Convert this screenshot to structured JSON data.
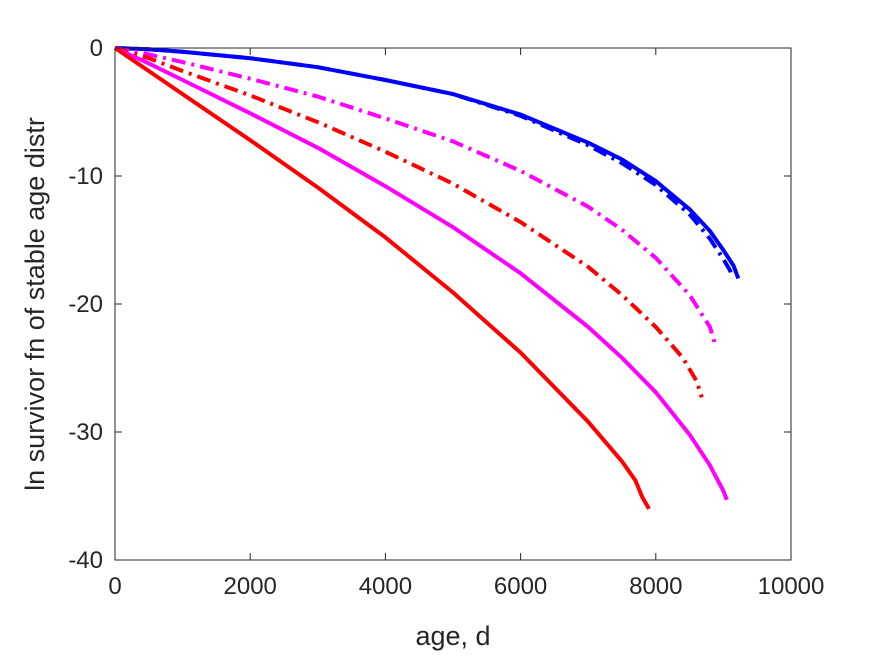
{
  "chart_data": {
    "type": "line",
    "title": "",
    "xlabel": "age, d",
    "ylabel": "ln survivor fn of stable age distr",
    "xlim": [
      0,
      10000
    ],
    "ylim": [
      -40,
      0
    ],
    "xticks": [
      0,
      2000,
      4000,
      6000,
      8000,
      10000
    ],
    "xtick_labels": [
      "0",
      "2000",
      "4000",
      "6000",
      "8000",
      "10000"
    ],
    "yticks": [
      0,
      -10,
      -20,
      -30,
      -40
    ],
    "ytick_labels": [
      "0",
      "-10",
      "-20",
      "-30",
      "-40"
    ],
    "grid": false,
    "legend": "none",
    "series": [
      {
        "color": "#0000ff",
        "style": "solid",
        "x": [
          0,
          500,
          1000,
          2000,
          3000,
          4000,
          5000,
          6000,
          7000,
          7500,
          8000,
          8500,
          8800,
          9000,
          9150,
          9220
        ],
        "y": [
          0,
          -0.1,
          -0.3,
          -0.8,
          -1.5,
          -2.5,
          -3.6,
          -5.2,
          -7.4,
          -8.7,
          -10.4,
          -12.6,
          -14.3,
          -15.8,
          -17.0,
          -18.0
        ]
      },
      {
        "color": "#0000ff",
        "style": "dashdot",
        "x": [
          0,
          500,
          1000,
          2000,
          3000,
          4000,
          5000,
          6000,
          7000,
          7500,
          8000,
          8500,
          8800,
          9000,
          9100,
          9120
        ],
        "y": [
          0,
          -0.1,
          -0.3,
          -0.8,
          -1.5,
          -2.5,
          -3.6,
          -5.3,
          -7.6,
          -9.0,
          -10.7,
          -13.0,
          -14.9,
          -16.5,
          -17.4,
          -18.0
        ]
      },
      {
        "color": "#ff00ff",
        "style": "dashdot",
        "x": [
          0,
          500,
          1000,
          2000,
          3000,
          4000,
          5000,
          6000,
          7000,
          7500,
          8000,
          8500,
          8800,
          8870
        ],
        "y": [
          0,
          -0.5,
          -1.1,
          -2.4,
          -3.8,
          -5.5,
          -7.3,
          -9.6,
          -12.4,
          -14.2,
          -16.4,
          -19.3,
          -21.8,
          -23.0
        ]
      },
      {
        "color": "#ff0000",
        "style": "dashdot",
        "x": [
          0,
          500,
          1000,
          2000,
          3000,
          4000,
          5000,
          6000,
          7000,
          7500,
          8000,
          8400,
          8600,
          8680
        ],
        "y": [
          0,
          -0.8,
          -1.8,
          -3.7,
          -5.8,
          -8.1,
          -10.6,
          -13.6,
          -17.1,
          -19.3,
          -21.8,
          -24.2,
          -26.0,
          -27.3
        ]
      },
      {
        "color": "#ff00ff",
        "style": "solid",
        "x": [
          0,
          500,
          1000,
          2000,
          3000,
          4000,
          5000,
          6000,
          7000,
          7500,
          8000,
          8500,
          8800,
          9000,
          9050
        ],
        "y": [
          0,
          -1.2,
          -2.5,
          -5.1,
          -7.8,
          -10.8,
          -14.0,
          -17.6,
          -21.8,
          -24.2,
          -26.9,
          -30.2,
          -32.6,
          -34.6,
          -35.3
        ]
      },
      {
        "color": "#ff0000",
        "style": "solid",
        "x": [
          0,
          500,
          1000,
          2000,
          3000,
          4000,
          5000,
          6000,
          7000,
          7500,
          7700,
          7800,
          7900
        ],
        "y": [
          0,
          -1.8,
          -3.6,
          -7.2,
          -10.9,
          -14.8,
          -19.1,
          -23.8,
          -29.2,
          -32.3,
          -33.8,
          -35.1,
          -36.0
        ]
      }
    ]
  }
}
